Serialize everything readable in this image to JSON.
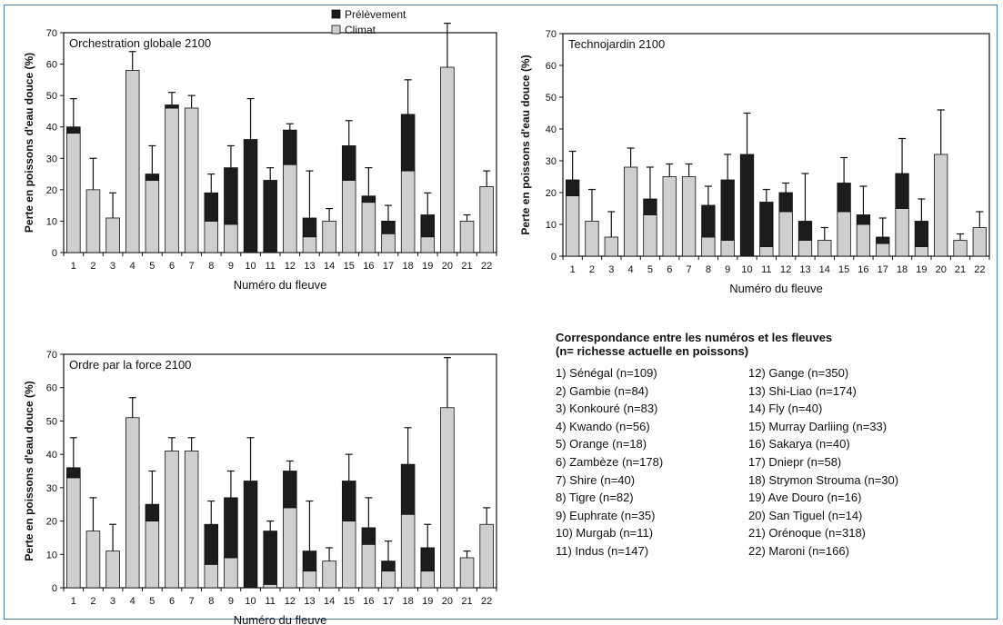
{
  "chart_data": [
    {
      "type": "bar",
      "stacked": true,
      "error_bars": true,
      "title": "Orchestration globale 2100",
      "xlabel": "Numéro du fleuve",
      "ylabel": "Perte en poissons d'eau douce (%)",
      "ylim": [
        0,
        70
      ],
      "yticks": [
        0,
        10,
        20,
        30,
        40,
        50,
        60,
        70
      ],
      "categories": [
        "1",
        "2",
        "3",
        "4",
        "5",
        "6",
        "7",
        "8",
        "9",
        "10",
        "11",
        "12",
        "13",
        "14",
        "15",
        "16",
        "17",
        "18",
        "19",
        "20",
        "21",
        "22"
      ],
      "legend": {
        "placement": "top-center",
        "entries": [
          "Prélèvement",
          "Climat"
        ]
      },
      "series": [
        {
          "name": "Climat",
          "color": "#cfcfcf",
          "values": [
            38,
            20,
            11,
            58,
            23,
            46,
            46,
            10,
            9,
            0,
            0,
            28,
            5,
            10,
            23,
            16,
            6,
            26,
            5,
            59,
            10,
            21
          ]
        },
        {
          "name": "Prélèvement",
          "color": "#1c1c1c",
          "values": [
            2,
            0,
            0,
            0,
            2,
            1,
            0,
            9,
            18,
            36,
            23,
            11,
            6,
            0,
            11,
            2,
            4,
            18,
            7,
            0,
            0,
            0
          ]
        }
      ],
      "error_top": [
        49,
        30,
        19,
        64,
        34,
        51,
        50,
        25,
        34,
        49,
        27,
        41,
        26,
        14,
        42,
        27,
        15,
        55,
        19,
        73,
        12,
        26
      ]
    },
    {
      "type": "bar",
      "stacked": true,
      "error_bars": true,
      "title": "Technojardin 2100",
      "xlabel": "Numéro du fleuve",
      "ylabel": "Perte en poissons d'eau douce (%)",
      "ylim": [
        0,
        70
      ],
      "yticks": [
        0,
        10,
        20,
        30,
        40,
        50,
        60,
        70
      ],
      "categories": [
        "1",
        "2",
        "3",
        "4",
        "5",
        "6",
        "7",
        "8",
        "9",
        "10",
        "11",
        "12",
        "13",
        "14",
        "15",
        "16",
        "17",
        "18",
        "19",
        "20",
        "21",
        "22"
      ],
      "series": [
        {
          "name": "Climat",
          "color": "#cfcfcf",
          "values": [
            19,
            11,
            6,
            28,
            13,
            25,
            25,
            6,
            5,
            0,
            3,
            14,
            5,
            5,
            14,
            10,
            4,
            15,
            3,
            32,
            5,
            9
          ]
        },
        {
          "name": "Prélèvement",
          "color": "#1c1c1c",
          "values": [
            5,
            0,
            0,
            0,
            5,
            0,
            0,
            10,
            19,
            32,
            14,
            6,
            6,
            0,
            9,
            3,
            2,
            11,
            8,
            0,
            0,
            0
          ]
        }
      ],
      "error_top": [
        33,
        21,
        14,
        34,
        28,
        29,
        29,
        22,
        32,
        45,
        21,
        23,
        26,
        9,
        31,
        22,
        12,
        37,
        18,
        46,
        7,
        14
      ]
    },
    {
      "type": "bar",
      "stacked": true,
      "error_bars": true,
      "title": "Ordre par la force 2100",
      "xlabel": "Numéro du fleuve",
      "ylabel": "Perte en poissons d'eau douce (%)",
      "ylim": [
        0,
        70
      ],
      "yticks": [
        0,
        10,
        20,
        30,
        40,
        50,
        60,
        70
      ],
      "categories": [
        "1",
        "2",
        "3",
        "4",
        "5",
        "6",
        "7",
        "8",
        "9",
        "10",
        "11",
        "12",
        "13",
        "14",
        "15",
        "16",
        "17",
        "18",
        "19",
        "20",
        "21",
        "22"
      ],
      "series": [
        {
          "name": "Climat",
          "color": "#cfcfcf",
          "values": [
            33,
            17,
            11,
            51,
            20,
            41,
            41,
            7,
            9,
            0,
            1,
            24,
            5,
            8,
            20,
            13,
            5,
            22,
            5,
            54,
            9,
            19
          ]
        },
        {
          "name": "Prélèvement",
          "color": "#1c1c1c",
          "values": [
            3,
            0,
            0,
            0,
            5,
            0,
            0,
            12,
            18,
            32,
            16,
            11,
            6,
            0,
            12,
            5,
            3,
            15,
            7,
            0,
            0,
            0
          ]
        }
      ],
      "error_top": [
        45,
        27,
        19,
        57,
        35,
        45,
        45,
        26,
        35,
        45,
        20,
        38,
        26,
        12,
        40,
        27,
        14,
        48,
        19,
        69,
        11,
        24
      ]
    }
  ],
  "correspondence": {
    "title_line1": "Correspondance entre les numéros et les fleuves",
    "title_line2": "(n= richesse actuelle en poissons)",
    "items": [
      "1) Sénégal (n=109)",
      "2) Gambie (n=84)",
      "3) Konkouré (n=83)",
      "4) Kwando (n=56)",
      "5) Orange (n=18)",
      "6) Zambèze (n=178)",
      "7) Shire (n=40)",
      "8) Tigre (n=82)",
      "9) Euphrate (n=35)",
      "10) Murgab (n=11)",
      "11) Indus (n=147)",
      "12) Gange (n=350)",
      "13) Shi-Liao (n=174)",
      "14) Fly (n=40)",
      "15) Murray Darliing (n=33)",
      "16) Sakarya (n=40)",
      "17) Dniepr (n=58)",
      "18) Strymon Strouma (n=30)",
      "19) Ave Douro (n=16)",
      "20) San Tiguel (n=14)",
      "21) Orénoque (n=318)",
      "22) Maroni (n=166)"
    ]
  }
}
